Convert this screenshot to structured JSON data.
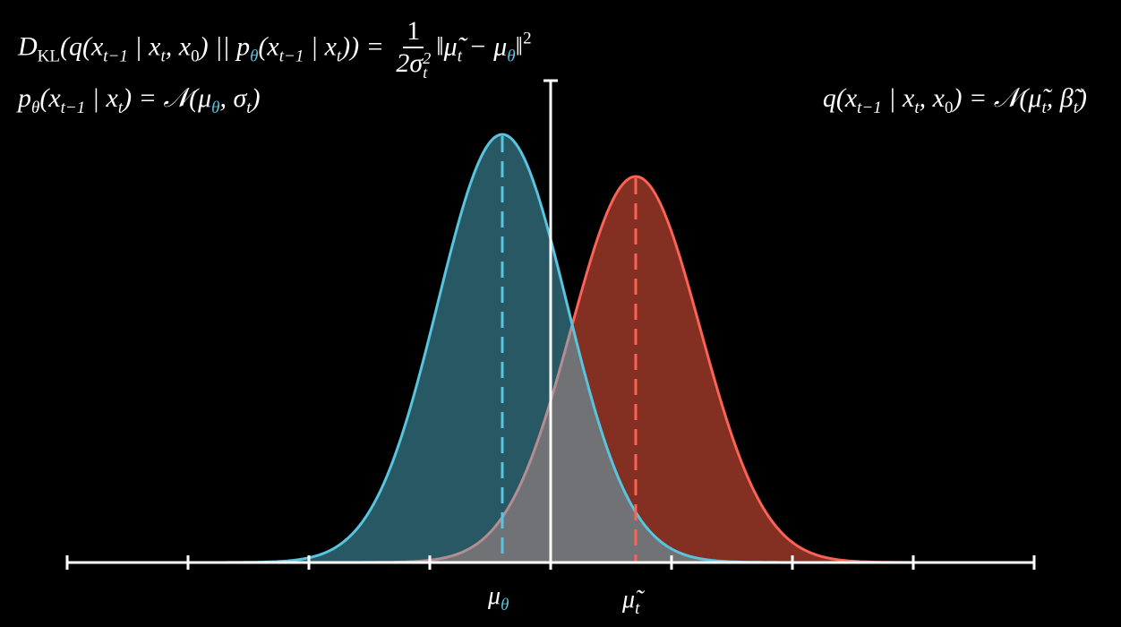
{
  "kl_formula": [
    "D",
    "KL",
    "(q(x",
    "t−1",
    " | x",
    "t",
    ", x",
    "0",
    ") || p",
    "θ",
    "(x",
    "t−1",
    " | x",
    "t",
    ")) = ",
    "1",
    "2σ",
    "t",
    "2",
    "‖μ̃",
    "t",
    " − μ",
    "θ",
    "‖",
    "2"
  ],
  "p_formula": [
    "p",
    "θ",
    "(x",
    "t−1",
    " | x",
    "t",
    ") = 𝒩(μ",
    "θ",
    ", σ",
    "t",
    ")"
  ],
  "q_formula": [
    "q(x",
    "t−1",
    " | x",
    "t",
    ", x",
    "0",
    ") = 𝒩(μ̃",
    "t",
    ", β̃",
    "t",
    ")"
  ],
  "axis_labels": {
    "mu_theta": [
      "μ",
      "θ"
    ],
    "mu_tilde": [
      "μ̃",
      "t"
    ]
  }
}
